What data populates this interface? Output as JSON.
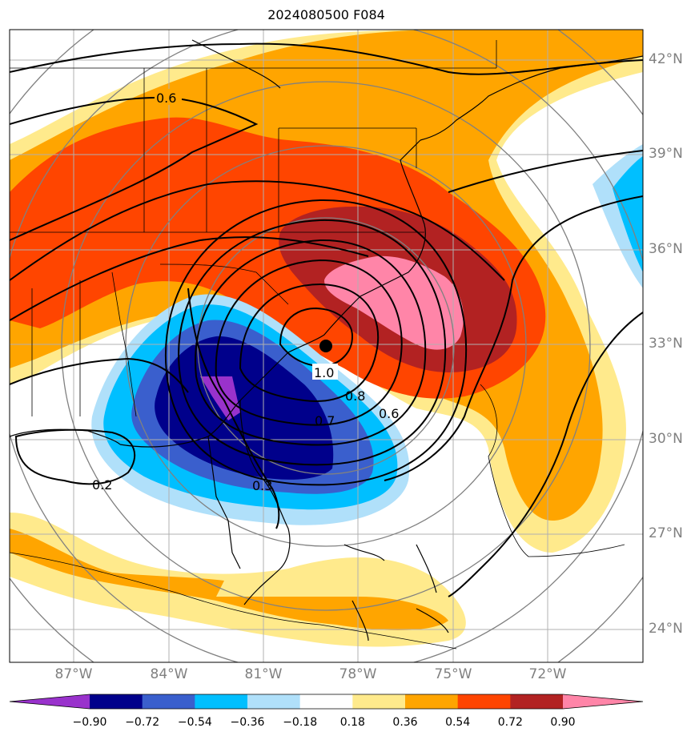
{
  "title": "2024080500 F084",
  "latitude_labels": [
    "42°N",
    "39°N",
    "36°N",
    "33°N",
    "30°N",
    "27°N",
    "24°N"
  ],
  "longitude_labels": [
    "87°W",
    "84°W",
    "81°W",
    "78°W",
    "75°W",
    "72°W"
  ],
  "colorbar": {
    "levels": [
      "−0.90",
      "−0.72",
      "−0.54",
      "−0.36",
      "−0.18",
      "0.18",
      "0.36",
      "0.54",
      "0.72",
      "0.90"
    ],
    "colors": [
      "#9932cc",
      "#00008b",
      "#3a5fcd",
      "#00bfff",
      "#b0e0fa",
      "#ffffff",
      "#ffea8c",
      "#ffa500",
      "#ff4500",
      "#b22222",
      "#ff85a8"
    ]
  },
  "contour_labels": [
    "0.6",
    "1.0",
    "0.8",
    "0.7",
    "0.6",
    "0.2",
    "0.3"
  ],
  "storm_center": {
    "lat": 33.0,
    "lon": -78.8,
    "marker": "black-dot"
  },
  "colors": {
    "coastline": "#000000",
    "graticule": "#b0b0b0",
    "range_rings": "#808080",
    "contours": "#000000"
  }
}
